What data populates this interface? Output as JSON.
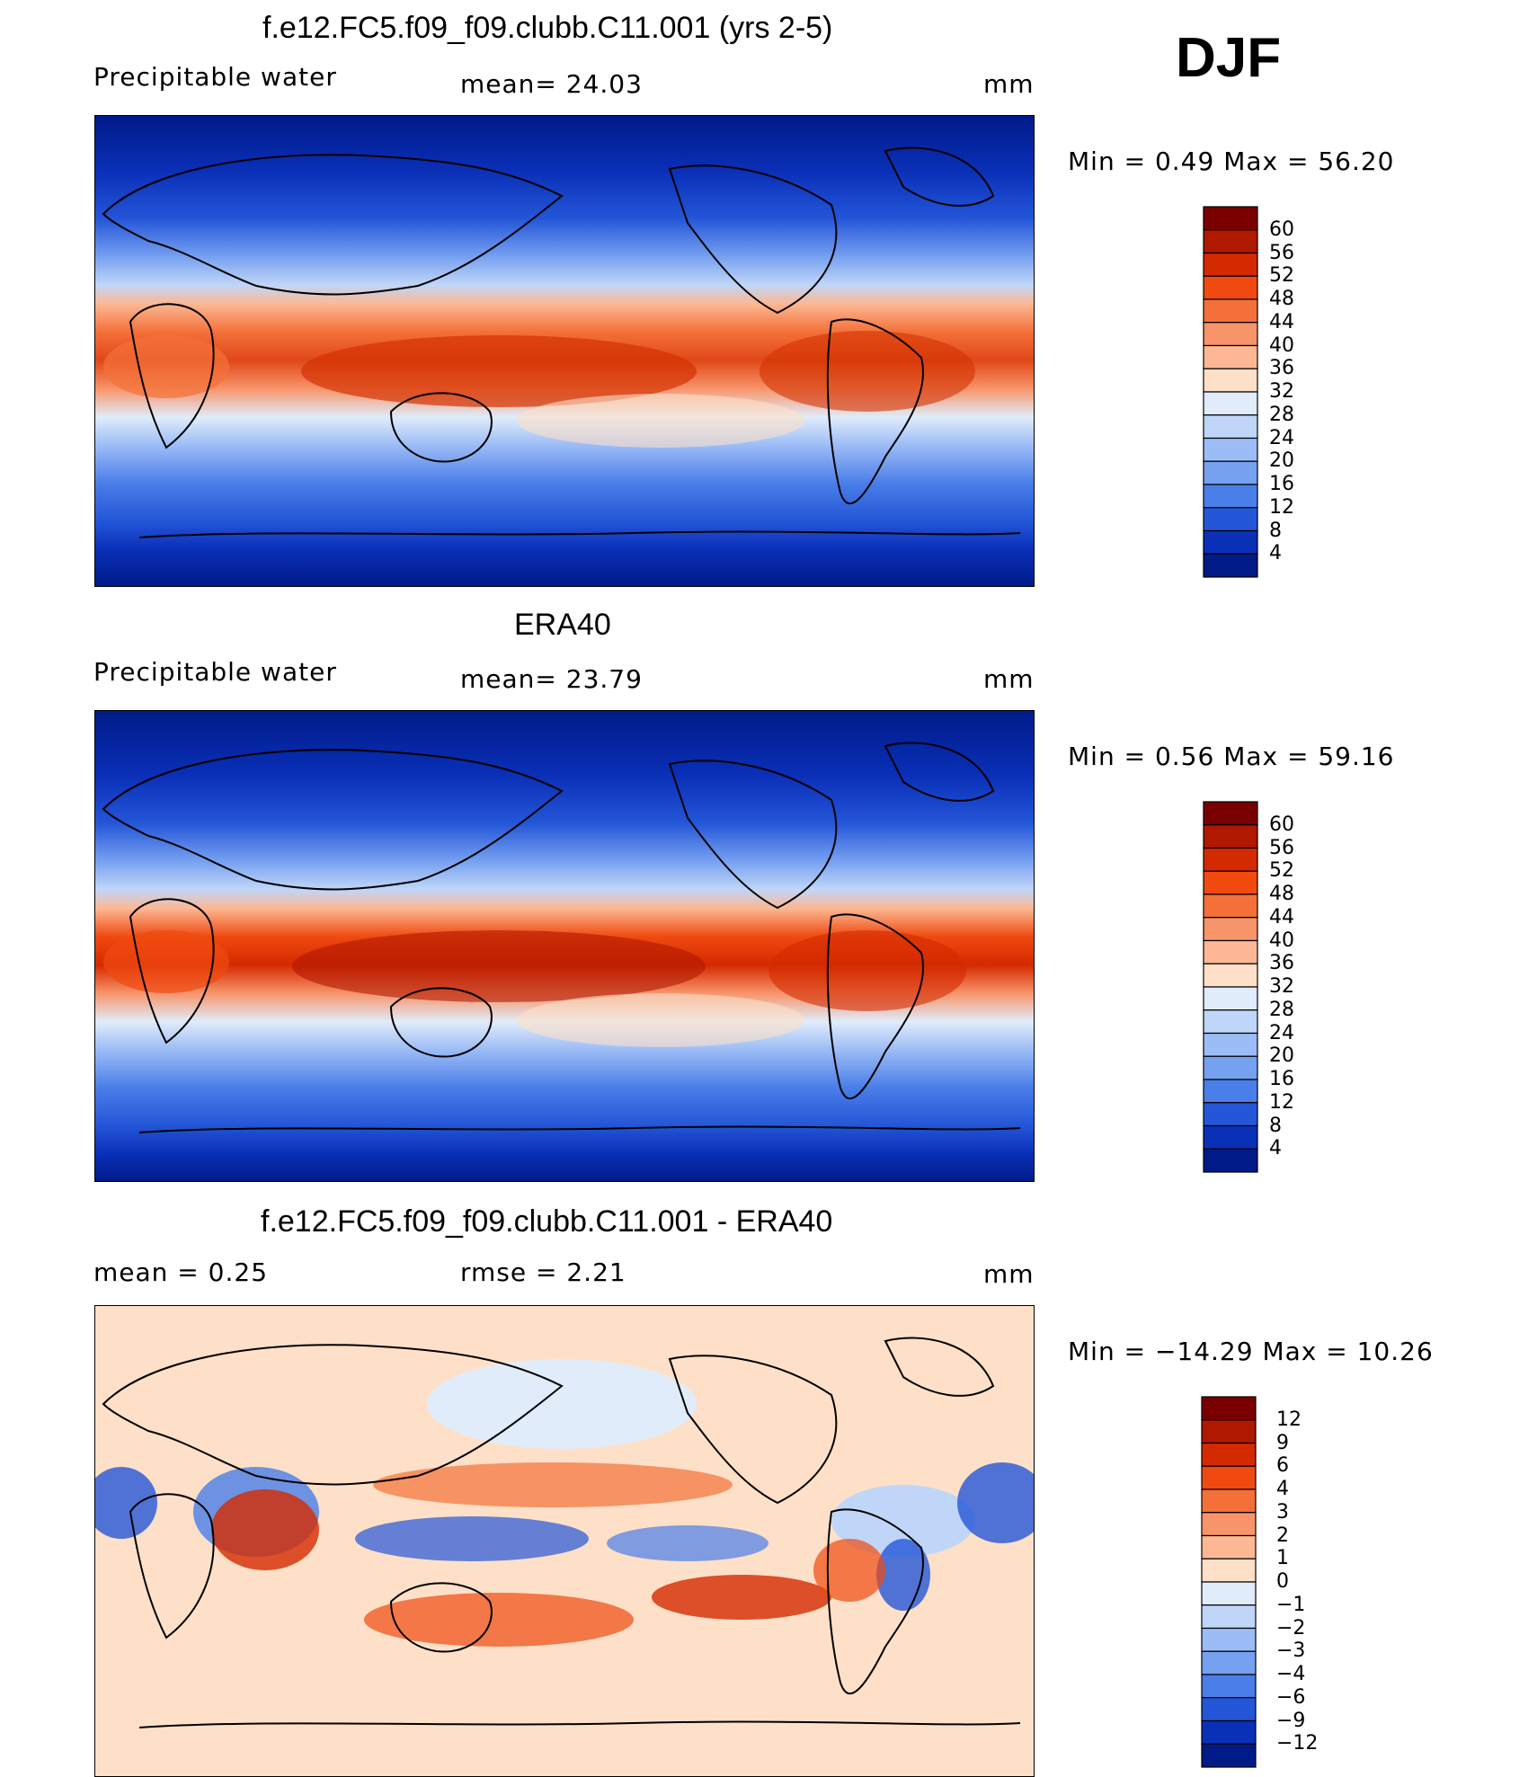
{
  "season": "DJF",
  "panels": [
    {
      "title": "f.e12.FC5.f09_f09.clubb.C11.001 (yrs 2-5)",
      "left_label": "Precipitable  water",
      "mid_label": "mean=   24.03",
      "units": "mm",
      "minmax": "Min  =     0.49  Max  =    56.20",
      "colorbar": {
        "labels": [
          "60",
          "56",
          "52",
          "48",
          "44",
          "40",
          "36",
          "32",
          "28",
          "24",
          "20",
          "16",
          "12",
          "8",
          "4"
        ],
        "colors": [
          "#7a0000",
          "#b01800",
          "#d42a00",
          "#f04a10",
          "#f47038",
          "#f8946a",
          "#fcb894",
          "#fee0c8",
          "#e0ecfa",
          "#c0d6f8",
          "#9cbcf6",
          "#76a0f0",
          "#4a7ee8",
          "#2456d8",
          "#0a30b8",
          "#001a88"
        ]
      }
    },
    {
      "title": "ERA40",
      "left_label": "Precipitable  water",
      "mid_label": "mean=   23.79",
      "units": "mm",
      "minmax": "Min  =     0.56  Max  =    59.16",
      "colorbar": {
        "labels": [
          "60",
          "56",
          "52",
          "48",
          "44",
          "40",
          "36",
          "32",
          "28",
          "24",
          "20",
          "16",
          "12",
          "8",
          "4"
        ],
        "colors": [
          "#7a0000",
          "#b01800",
          "#d42a00",
          "#f04a10",
          "#f47038",
          "#f8946a",
          "#fcb894",
          "#fee0c8",
          "#e0ecfa",
          "#c0d6f8",
          "#9cbcf6",
          "#76a0f0",
          "#4a7ee8",
          "#2456d8",
          "#0a30b8",
          "#001a88"
        ]
      }
    },
    {
      "title": "f.e12.FC5.f09_f09.clubb.C11.001 - ERA40",
      "left_label": "mean  =     0.25",
      "mid_label": "rmse  =     2.21",
      "units": "mm",
      "minmax": "Min  = −14.29  Max  =    10.26",
      "colorbar": {
        "labels": [
          "12",
          "9",
          "6",
          "4",
          "3",
          "2",
          "1",
          "0",
          "−1",
          "−2",
          "−3",
          "−4",
          "−6",
          "−9",
          "−12"
        ],
        "colors": [
          "#7a0000",
          "#b01800",
          "#d42a00",
          "#f04a10",
          "#f47038",
          "#f8946a",
          "#fcb894",
          "#fee0c8",
          "#e0ecfa",
          "#c0d6f8",
          "#9cbcf6",
          "#76a0f0",
          "#4a7ee8",
          "#2456d8",
          "#0a30b8",
          "#001a88"
        ]
      }
    }
  ]
}
